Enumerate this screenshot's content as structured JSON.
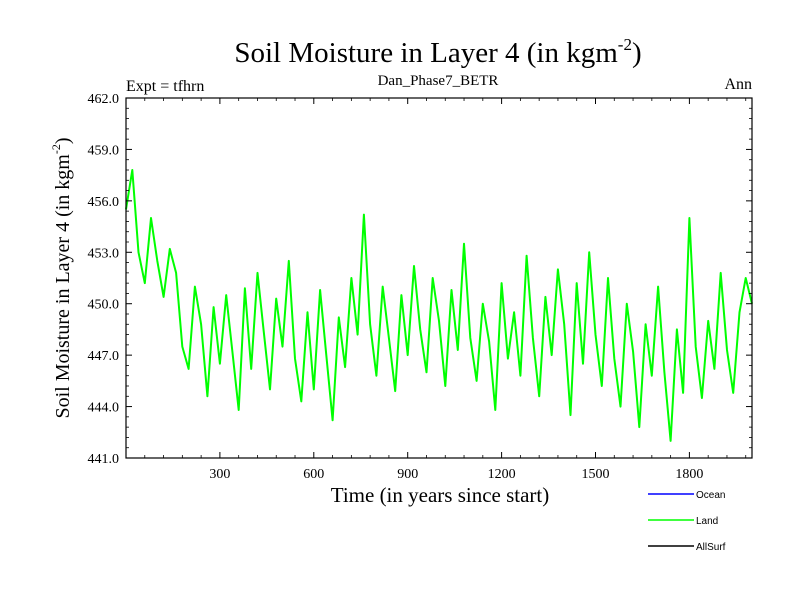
{
  "chart_data": {
    "type": "line",
    "title": "Soil Moisture in Layer 4 (in kgm",
    "title_superscript": "-2",
    "title_close": ")",
    "subtitle_left": "Expt = tfhrn",
    "subtitle_center": "Dan_Phase7_BETR",
    "subtitle_right": "Ann",
    "xlabel": "Time (in years since start)",
    "ylabel": "Soil Moisture in Layer 4 (in kgm",
    "ylabel_superscript": "-2",
    "ylabel_close": ")",
    "xlim": [
      0,
      2000
    ],
    "ylim": [
      441.0,
      462.0
    ],
    "xticks": [
      300,
      600,
      900,
      1200,
      1500,
      1800
    ],
    "xtick_labels": [
      "300",
      "600",
      "900",
      "1200",
      "1500",
      "1800"
    ],
    "yticks": [
      441.0,
      444.0,
      447.0,
      450.0,
      453.0,
      456.0,
      459.0,
      462.0
    ],
    "ytick_labels": [
      "441.0",
      "444.0",
      "447.0",
      "450.0",
      "453.0",
      "456.0",
      "459.0",
      "462.0"
    ],
    "legend_position": "bottom-right",
    "series": [
      {
        "name": "Ocean",
        "color": "#0000ff",
        "x": [],
        "y": []
      },
      {
        "name": "Land",
        "color": "#00ff00",
        "x": [
          0,
          20,
          40,
          60,
          80,
          100,
          120,
          140,
          160,
          180,
          200,
          220,
          240,
          260,
          280,
          300,
          320,
          340,
          360,
          380,
          400,
          420,
          440,
          460,
          480,
          500,
          520,
          540,
          560,
          580,
          600,
          620,
          640,
          660,
          680,
          700,
          720,
          740,
          760,
          780,
          800,
          820,
          840,
          860,
          880,
          900,
          920,
          940,
          960,
          980,
          1000,
          1020,
          1040,
          1060,
          1080,
          1100,
          1120,
          1140,
          1160,
          1180,
          1200,
          1220,
          1240,
          1260,
          1280,
          1300,
          1320,
          1340,
          1360,
          1380,
          1400,
          1420,
          1440,
          1460,
          1480,
          1500,
          1520,
          1540,
          1560,
          1580,
          1600,
          1620,
          1640,
          1660,
          1680,
          1700,
          1720,
          1740,
          1760,
          1780,
          1800,
          1820,
          1840,
          1860,
          1880,
          1900,
          1920,
          1940,
          1960,
          1980,
          2000
        ],
        "y": [
          455.5,
          457.8,
          453.0,
          451.2,
          455.0,
          452.5,
          450.4,
          453.2,
          451.8,
          447.5,
          446.2,
          451.0,
          448.8,
          444.6,
          449.8,
          446.5,
          450.5,
          447.2,
          443.8,
          450.9,
          446.2,
          451.8,
          448.4,
          445.0,
          450.3,
          447.5,
          452.5,
          446.8,
          444.3,
          449.5,
          445.0,
          450.8,
          447.0,
          443.2,
          449.2,
          446.3,
          451.5,
          448.2,
          455.2,
          448.8,
          445.8,
          451.0,
          448.0,
          444.9,
          450.5,
          447.0,
          452.2,
          448.5,
          446.0,
          451.5,
          449.0,
          445.2,
          450.8,
          447.3,
          453.5,
          448.0,
          445.5,
          450.0,
          447.8,
          443.8,
          451.2,
          446.8,
          449.5,
          445.8,
          452.8,
          448.0,
          444.6,
          450.4,
          447.0,
          452.0,
          448.8,
          443.5,
          451.2,
          446.5,
          453.0,
          448.2,
          445.2,
          451.5,
          446.8,
          444.0,
          450.0,
          447.2,
          442.8,
          448.8,
          445.8,
          451.0,
          446.0,
          442.0,
          448.5,
          444.8,
          455.0,
          447.5,
          444.5,
          449.0,
          446.2,
          451.8,
          447.3,
          444.8,
          449.5,
          451.5,
          450.0
        ]
      },
      {
        "name": "AllSurf",
        "color": "#000000",
        "x": [],
        "y": []
      }
    ]
  }
}
